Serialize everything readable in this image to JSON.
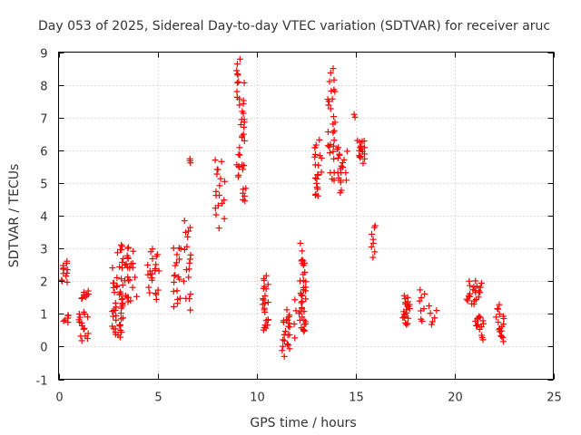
{
  "chart_data": {
    "type": "scatter",
    "title": "Day 053 of 2025, Sidereal Day-to-day VTEC variation (SDTVAR) for receiver aruc",
    "xlabel": "GPS time / hours",
    "ylabel": "SDTVAR / TECUs",
    "xlim": [
      0,
      25
    ],
    "ylim": [
      -1,
      9
    ],
    "xticks": [
      "0",
      "5",
      "10",
      "15",
      "20",
      "25"
    ],
    "yticks": [
      "-1",
      "0",
      "1",
      "2",
      "3",
      "4",
      "5",
      "6",
      "7",
      "8",
      "9"
    ],
    "grid": true,
    "marker": "plus",
    "color": "#ff0000",
    "series": [
      {
        "name": "SDTVAR",
        "clusters": [
          {
            "x": [
              0.15,
              0.45
            ],
            "y": [
              1.9,
              2.7
            ],
            "n": 12
          },
          {
            "x": [
              0.15,
              0.5
            ],
            "y": [
              0.7,
              1.0
            ],
            "n": 6
          },
          {
            "x": [
              1.0,
              1.5
            ],
            "y": [
              0.1,
              1.2
            ],
            "n": 16
          },
          {
            "x": [
              1.1,
              1.55
            ],
            "y": [
              1.45,
              1.7
            ],
            "n": 8
          },
          {
            "x": [
              2.7,
              3.3
            ],
            "y": [
              0.2,
              1.6
            ],
            "n": 30
          },
          {
            "x": [
              2.7,
              3.6
            ],
            "y": [
              1.3,
              3.3
            ],
            "n": 34
          },
          {
            "x": [
              3.5,
              4.0
            ],
            "y": [
              1.2,
              3.0
            ],
            "n": 12
          },
          {
            "x": [
              4.5,
              5.1
            ],
            "y": [
              1.4,
              3.1
            ],
            "n": 22
          },
          {
            "x": [
              5.8,
              6.2
            ],
            "y": [
              1.1,
              3.2
            ],
            "n": 18
          },
          {
            "x": [
              6.3,
              6.7
            ],
            "y": [
              1.1,
              4.1
            ],
            "n": 18
          },
          {
            "x": [
              6.6,
              6.7
            ],
            "y": [
              5.6,
              5.75
            ],
            "n": 3
          },
          {
            "x": [
              7.9,
              8.4
            ],
            "y": [
              3.6,
              5.9
            ],
            "n": 18
          },
          {
            "x": [
              9.0,
              9.4
            ],
            "y": [
              4.8,
              9.0
            ],
            "n": 36
          },
          {
            "x": [
              9.3,
              9.6
            ],
            "y": [
              4.4,
              4.9
            ],
            "n": 6
          },
          {
            "x": [
              10.3,
              10.6
            ],
            "y": [
              0.2,
              2.3
            ],
            "n": 24
          },
          {
            "x": [
              11.3,
              11.7
            ],
            "y": [
              -0.35,
              1.2
            ],
            "n": 22
          },
          {
            "x": [
              11.9,
              12.3
            ],
            "y": [
              0.2,
              1.8
            ],
            "n": 10
          },
          {
            "x": [
              12.2,
              12.5
            ],
            "y": [
              0.1,
              3.2
            ],
            "n": 32
          },
          {
            "x": [
              12.9,
              13.3
            ],
            "y": [
              4.4,
              6.4
            ],
            "n": 22
          },
          {
            "x": [
              13.6,
              14.0
            ],
            "y": [
              5.0,
              8.6
            ],
            "n": 30
          },
          {
            "x": [
              14.0,
              14.6
            ],
            "y": [
              4.7,
              6.2
            ],
            "n": 20
          },
          {
            "x": [
              14.9,
              15.0
            ],
            "y": [
              7.0,
              7.1
            ],
            "n": 2
          },
          {
            "x": [
              15.1,
              15.5
            ],
            "y": [
              5.6,
              6.4
            ],
            "n": 18
          },
          {
            "x": [
              15.8,
              16.0
            ],
            "y": [
              2.7,
              3.8
            ],
            "n": 8
          },
          {
            "x": [
              17.4,
              17.8
            ],
            "y": [
              0.6,
              1.6
            ],
            "n": 22
          },
          {
            "x": [
              18.2,
              18.5
            ],
            "y": [
              0.7,
              1.8
            ],
            "n": 8
          },
          {
            "x": [
              18.7,
              19.2
            ],
            "y": [
              0.6,
              1.3
            ],
            "n": 6
          },
          {
            "x": [
              20.6,
              21.4
            ],
            "y": [
              1.2,
              2.1
            ],
            "n": 22
          },
          {
            "x": [
              21.0,
              21.5
            ],
            "y": [
              0.5,
              1.0
            ],
            "n": 12
          },
          {
            "x": [
              21.3,
              21.5
            ],
            "y": [
              0.2,
              0.35
            ],
            "n": 3
          },
          {
            "x": [
              22.1,
              22.5
            ],
            "y": [
              0.05,
              1.3
            ],
            "n": 18
          }
        ]
      }
    ]
  }
}
